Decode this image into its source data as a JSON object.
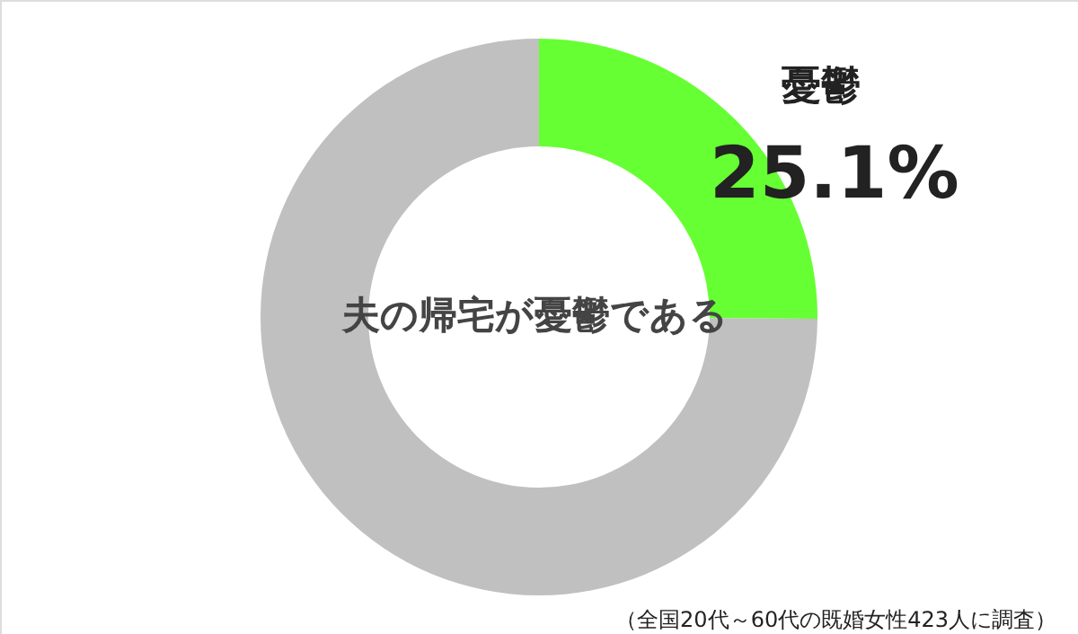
{
  "chart_data": {
    "type": "donut",
    "title": "夫の帰宅が憂鬱である",
    "categories": [
      "憂鬱",
      null
    ],
    "values": [
      25.1,
      74.9
    ],
    "colors": [
      "#66ff33",
      "#c0c0c0"
    ],
    "value_labels": [
      "25.1%",
      null
    ],
    "annotations": [
      "（全国20代～60代の既婚女性423人に調査）"
    ]
  }
}
